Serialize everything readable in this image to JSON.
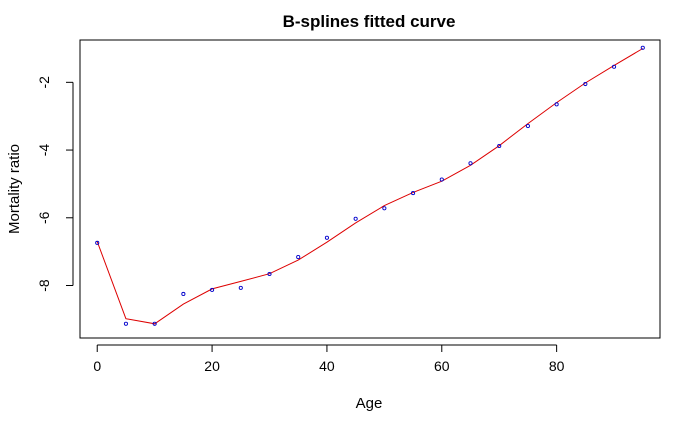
{
  "chart_data": {
    "type": "scatter",
    "title": "B-splines fitted curve",
    "xlabel": "Age",
    "ylabel": "Mortality ratio",
    "xlim": [
      -3,
      98
    ],
    "ylim": [
      -9.55,
      -0.75
    ],
    "x_ticks": [
      0,
      20,
      40,
      60,
      80
    ],
    "y_ticks": [
      -8,
      -6,
      -4,
      -2
    ],
    "grid": false,
    "legend": "none",
    "points": {
      "color": "#0000cc",
      "x": [
        0,
        5,
        10,
        15,
        20,
        25,
        30,
        35,
        40,
        45,
        50,
        55,
        60,
        65,
        70,
        75,
        80,
        85,
        90,
        95
      ],
      "y": [
        -6.74,
        -9.13,
        -9.13,
        -8.25,
        -8.13,
        -8.07,
        -7.66,
        -7.16,
        -6.59,
        -6.03,
        -5.72,
        -5.27,
        -4.87,
        -4.39,
        -3.88,
        -3.29,
        -2.65,
        -2.05,
        -1.54,
        -0.98
      ]
    },
    "fitted_curve": {
      "color": "#dd0000",
      "x": [
        0,
        5,
        10,
        15,
        20,
        25,
        30,
        35,
        40,
        45,
        50,
        55,
        60,
        65,
        70,
        75,
        80,
        85,
        90,
        95
      ],
      "y": [
        -6.7,
        -8.98,
        -9.13,
        -8.55,
        -8.1,
        -7.88,
        -7.65,
        -7.25,
        -6.72,
        -6.15,
        -5.64,
        -5.25,
        -4.92,
        -4.45,
        -3.87,
        -3.22,
        -2.6,
        -2.02,
        -1.5,
        -1.0
      ]
    }
  }
}
